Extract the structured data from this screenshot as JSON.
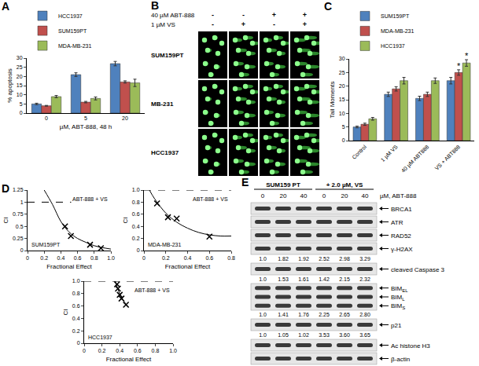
{
  "chart_data": [
    {
      "panel": "A",
      "type": "bar",
      "x_label": "µM, ABT-888, 48 h",
      "y_label": "% apoptosis",
      "categories": [
        "0",
        "5",
        "20"
      ],
      "series": [
        {
          "name": "HCC1937",
          "color": "#4f81bd",
          "values": [
            5,
            21,
            27
          ],
          "errors": [
            0.4,
            1.0,
            1.2
          ]
        },
        {
          "name": "SUM159PT",
          "color": "#c0504d",
          "values": [
            4,
            6,
            17
          ],
          "errors": [
            0.2,
            0.4,
            0.6
          ]
        },
        {
          "name": "MDA-MB-231",
          "color": "#9bbb59",
          "values": [
            9,
            8,
            16.5
          ],
          "errors": [
            0.6,
            0.8,
            2.0
          ]
        }
      ],
      "ylim": [
        0,
        30
      ],
      "yticks": [
        0,
        5,
        10,
        15,
        20,
        25,
        30
      ],
      "legend": "top"
    },
    {
      "panel": "C",
      "type": "bar",
      "y_label": "Tail Moments",
      "categories": [
        "Control",
        "1 µM VS",
        "40 µM ABT888",
        "VS + ABT888"
      ],
      "series": [
        {
          "name": "SUM159PT",
          "color": "#4f81bd",
          "values": [
            5,
            17,
            15.5,
            22
          ],
          "errors": [
            0.3,
            0.8,
            0.8,
            1.2
          ]
        },
        {
          "name": "MDA-MB-231",
          "color": "#c0504d",
          "values": [
            6,
            19,
            17,
            25
          ],
          "errors": [
            0.4,
            0.8,
            0.8,
            1.0
          ]
        },
        {
          "name": "HCC1937",
          "color": "#9bbb59",
          "values": [
            8,
            22,
            22,
            28.5
          ],
          "errors": [
            0.5,
            1.2,
            1.0,
            1.2
          ]
        }
      ],
      "annotations": [
        {
          "text": "*",
          "category": "VS + ABT888",
          "series": "MDA-MB-231"
        },
        {
          "text": "*",
          "category": "VS + ABT888",
          "series": "HCC1937"
        }
      ],
      "ylim": [
        0,
        30
      ],
      "yticks": [
        0,
        5,
        10,
        15,
        20,
        25,
        30
      ],
      "legend": "top"
    },
    {
      "panel": "D",
      "type": "scatter",
      "title": "ABT-888 + VS",
      "subtitle": "SUM159PT",
      "x_label": "Fractional Effect",
      "y_label": "CI",
      "points": {
        "x": [
          0.45,
          0.52,
          0.75,
          0.88
        ],
        "y": [
          0.5,
          0.3,
          0.12,
          0.05
        ],
        "marker": "x"
      },
      "curve": {
        "x": [
          0.2,
          0.3,
          0.4,
          0.5,
          0.6,
          0.7,
          0.8,
          0.9,
          1.0
        ],
        "y": [
          1.25,
          0.95,
          0.6,
          0.38,
          0.25,
          0.17,
          0.1,
          0.06,
          0.03
        ]
      },
      "reference_line": {
        "y": 1,
        "line_style": "dashed"
      },
      "xlim": [
        0,
        1
      ],
      "xticks": [
        0,
        0.2,
        0.4,
        0.6,
        0.8,
        {
          "value": 1,
          "label": "1.0"
        }
      ],
      "ylim": [
        0,
        1.25
      ],
      "yticks": [
        0,
        0.25,
        0.5,
        0.75,
        1,
        1.25
      ]
    },
    {
      "type": "scatter",
      "title": "ABT-888 + VS",
      "subtitle": "MDA-MB-231",
      "x_label": "Fractional Effect",
      "y_label": "CI",
      "points": {
        "x": [
          0.12,
          0.22,
          0.3,
          0.6
        ],
        "y": [
          0.78,
          0.55,
          0.53,
          0.23
        ],
        "marker": "x"
      },
      "curve": {
        "x": [
          0.05,
          0.1,
          0.2,
          0.3,
          0.4,
          0.5,
          0.6,
          0.7,
          0.8
        ],
        "y": [
          1.0,
          0.85,
          0.62,
          0.47,
          0.37,
          0.3,
          0.26,
          0.24,
          0.24
        ]
      },
      "reference_line": {
        "y": 1,
        "line_style": "dashed"
      },
      "xlim": [
        0,
        0.8
      ],
      "xticks": [
        0,
        0.2,
        0.4,
        0.6,
        0.8
      ],
      "ylim": [
        0,
        1
      ],
      "yticks": [
        0,
        0.2,
        0.4,
        0.6,
        0.8,
        {
          "value": 1,
          "label": "1.0"
        }
      ]
    },
    {
      "type": "scatter",
      "title": "ABT-888 + VS",
      "subtitle": "HCC1937",
      "x_label": "Fractional Effect",
      "y_label": "CI",
      "points": {
        "x": [
          0.37,
          0.38,
          0.4,
          0.42,
          0.47
        ],
        "y": [
          0.95,
          0.88,
          0.78,
          0.72,
          0.62
        ],
        "marker": "x"
      },
      "curve": {
        "x": [
          0.35,
          0.4,
          0.45,
          0.5
        ],
        "y": [
          1.0,
          0.8,
          0.67,
          0.58
        ]
      },
      "reference_line": {
        "y": 1,
        "line_style": "dashed"
      },
      "xlim": [
        0,
        1
      ],
      "xticks": [
        0,
        0.2,
        0.4,
        0.6,
        0.8,
        {
          "value": 1,
          "label": "1.0"
        }
      ],
      "ylim": [
        0,
        1
      ],
      "yticks": [
        0,
        0.2,
        0.4,
        0.6,
        0.8,
        {
          "value": 1,
          "label": "1.0"
        }
      ]
    }
  ],
  "panel_b": {
    "panel": "B",
    "conditions": [
      {
        "label": "40 µM ABT-888",
        "values": [
          "-",
          "-",
          "+",
          "+"
        ]
      },
      {
        "label": "1 µM VS",
        "values": [
          "-",
          "+",
          "-",
          "+"
        ]
      }
    ],
    "rows": [
      "SUM159PT",
      "MB-231",
      "HCC1937"
    ]
  },
  "panel_e": {
    "panel": "E",
    "cell_line": "SUM159 PT",
    "treatment": "+ 2.0 µM, VS",
    "doses": [
      "0",
      "20",
      "40",
      "0",
      "20",
      "40"
    ],
    "dose_label": "µM, ABT-888",
    "rows": [
      {
        "labels": [
          {
            "text": "BRCA1"
          }
        ]
      },
      {
        "labels": [
          {
            "text": "ATR"
          }
        ]
      },
      {
        "labels": [
          {
            "text": "RAD52"
          }
        ]
      },
      {
        "labels": [
          {
            "text": "γ-H2AX"
          }
        ],
        "quant": [
          "1.0",
          "1.82",
          "1.92",
          "2.52",
          "2.98",
          "3.29"
        ]
      },
      {
        "labels": [
          {
            "text": "cleaved Caspase 3"
          }
        ],
        "quant": [
          "1.0",
          "1.53",
          "1.61",
          "1.42",
          "2.15",
          "2.32"
        ]
      },
      {
        "labels": [
          {
            "text": "BIM",
            "sub": "EL"
          },
          {
            "text": "BIM",
            "sub": "L"
          },
          {
            "text": "BIM",
            "sub": "S"
          }
        ],
        "quant": [
          "1.0",
          "1.41",
          "1.76",
          "2.25",
          "2.65",
          "2.80"
        ]
      },
      {
        "labels": [
          {
            "text": "p21"
          }
        ],
        "quant": [
          "1.0",
          "1.05",
          "1.02",
          "3.53",
          "3.60",
          "3.65"
        ]
      },
      {
        "labels": [
          {
            "text": "Ac histone H3"
          }
        ]
      },
      {
        "labels": [
          {
            "text": "β-actin"
          }
        ]
      }
    ]
  }
}
